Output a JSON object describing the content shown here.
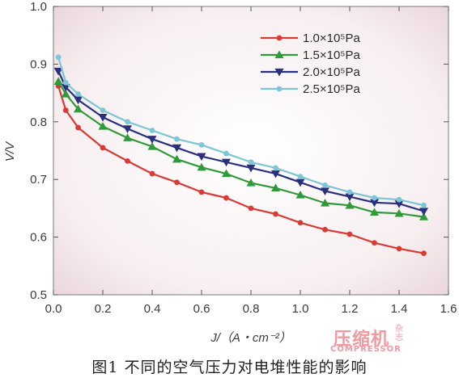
{
  "chart_data": {
    "type": "line",
    "title": "",
    "xlabel": "J/（A・cm⁻²）",
    "ylabel": "V/V",
    "xlim": [
      0,
      1.6
    ],
    "ylim": [
      0.5,
      1.0
    ],
    "xticks": [
      "0.0",
      "0.2",
      "0.4",
      "0.6",
      "0.8",
      "1.0",
      "1.2",
      "1.4",
      "1.6"
    ],
    "yticks": [
      "0.5",
      "0.6",
      "0.7",
      "0.8",
      "0.9",
      "1.0"
    ],
    "grid": false,
    "legend_position": "top-right",
    "series": [
      {
        "name": "1.0×10⁵Pa",
        "color": "#d83a34",
        "marker": "circle",
        "x": [
          0.02,
          0.05,
          0.1,
          0.2,
          0.3,
          0.4,
          0.5,
          0.6,
          0.7,
          0.8,
          0.9,
          1.0,
          1.1,
          1.2,
          1.3,
          1.4,
          1.5
        ],
        "y": [
          0.862,
          0.82,
          0.79,
          0.755,
          0.732,
          0.71,
          0.695,
          0.678,
          0.668,
          0.65,
          0.64,
          0.625,
          0.613,
          0.605,
          0.59,
          0.58,
          0.572
        ]
      },
      {
        "name": "1.5×10⁵Pa",
        "color": "#2e9a3a",
        "marker": "triangle-up",
        "x": [
          0.02,
          0.05,
          0.1,
          0.2,
          0.3,
          0.4,
          0.5,
          0.6,
          0.7,
          0.8,
          0.9,
          1.0,
          1.1,
          1.2,
          1.3,
          1.4,
          1.5
        ],
        "y": [
          0.87,
          0.848,
          0.822,
          0.792,
          0.772,
          0.757,
          0.735,
          0.721,
          0.71,
          0.694,
          0.685,
          0.673,
          0.659,
          0.655,
          0.643,
          0.641,
          0.635
        ]
      },
      {
        "name": "2.0×10⁵Pa",
        "color": "#2a2f7e",
        "marker": "triangle-down",
        "x": [
          0.02,
          0.05,
          0.1,
          0.2,
          0.3,
          0.4,
          0.5,
          0.6,
          0.7,
          0.8,
          0.9,
          1.0,
          1.1,
          1.2,
          1.3,
          1.4,
          1.5
        ],
        "y": [
          0.888,
          0.86,
          0.838,
          0.808,
          0.788,
          0.77,
          0.755,
          0.74,
          0.73,
          0.72,
          0.71,
          0.695,
          0.68,
          0.67,
          0.66,
          0.658,
          0.645
        ]
      },
      {
        "name": "2.5×10⁵Pa",
        "color": "#7cc6d6",
        "marker": "circle",
        "x": [
          0.02,
          0.05,
          0.1,
          0.2,
          0.3,
          0.4,
          0.5,
          0.6,
          0.7,
          0.8,
          0.9,
          1.0,
          1.1,
          1.2,
          1.3,
          1.4,
          1.5
        ],
        "y": [
          0.912,
          0.868,
          0.848,
          0.82,
          0.8,
          0.785,
          0.77,
          0.76,
          0.745,
          0.73,
          0.72,
          0.705,
          0.69,
          0.678,
          0.668,
          0.665,
          0.655
        ]
      }
    ]
  },
  "caption": "图1 不同的空气压力对电堆性能的影响",
  "watermark": {
    "main": "压缩机",
    "side": "杂志",
    "sub": "COMPRESSOR"
  }
}
